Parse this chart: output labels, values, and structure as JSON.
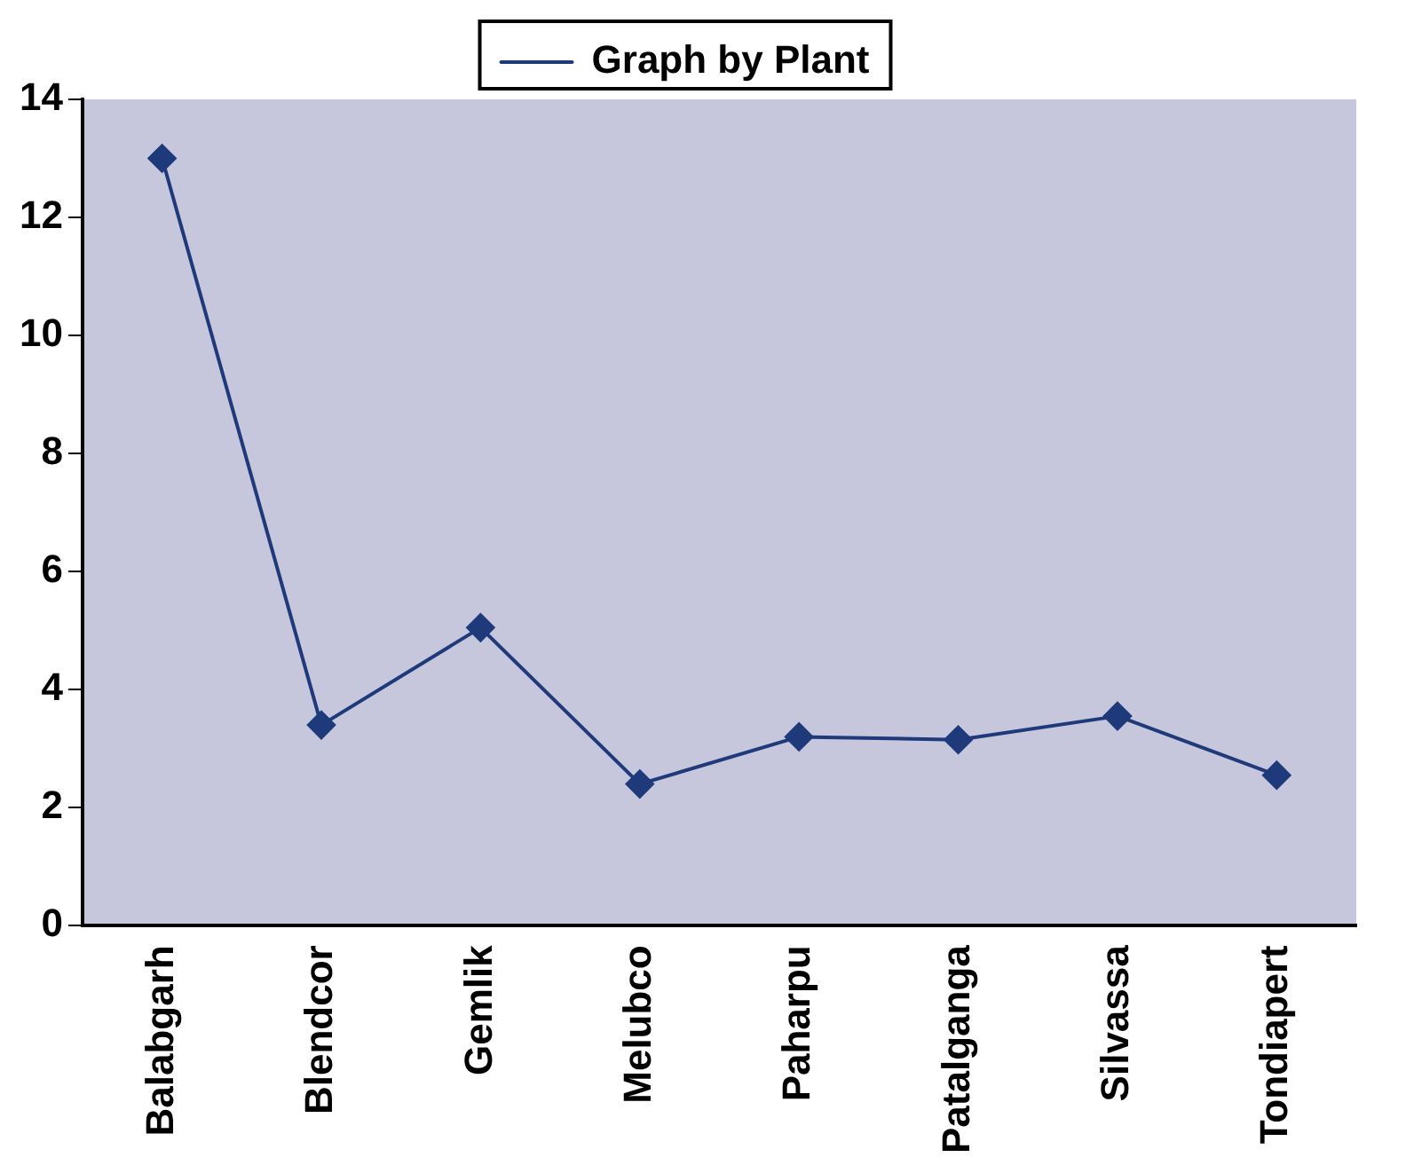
{
  "chart_data": {
    "type": "line",
    "categories": [
      "Balabgarh",
      "Blendcor",
      "Gemlik",
      "Melubco",
      "Paharpu",
      "Patalganga",
      "Silvassa",
      "Tondiapert"
    ],
    "series": [
      {
        "name": "Graph by Plant",
        "color": "#1f3a7a",
        "values": [
          13,
          3.4,
          5.05,
          2.4,
          3.2,
          3.15,
          3.55,
          2.55
        ]
      }
    ],
    "ylim": [
      0,
      14
    ],
    "yticks": [
      0,
      2,
      4,
      6,
      8,
      10,
      12,
      14
    ],
    "legend": "top",
    "marker": "diamond",
    "grid": false
  }
}
